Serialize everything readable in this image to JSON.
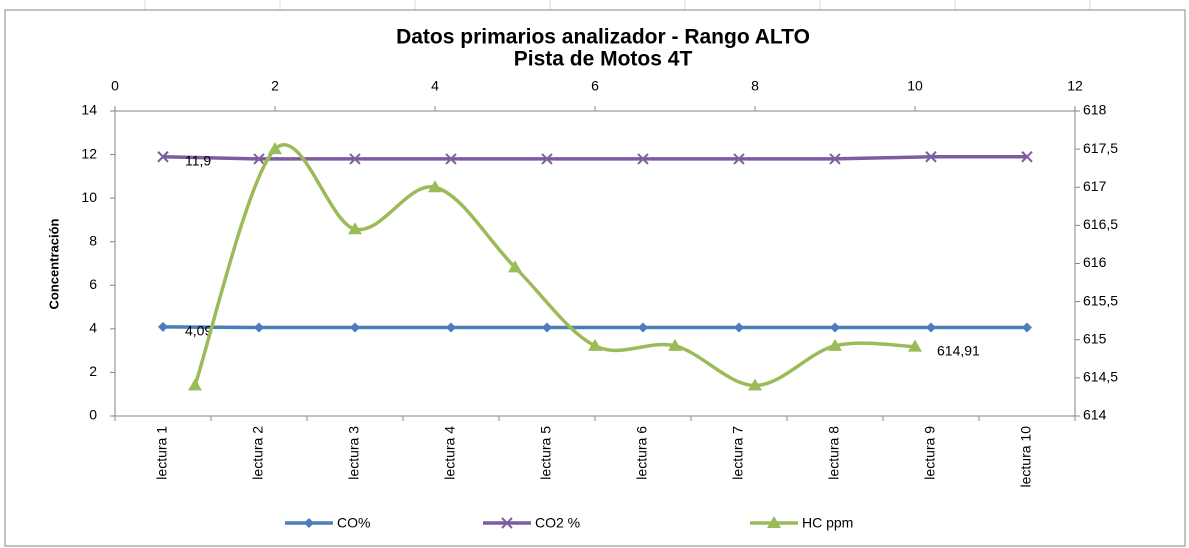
{
  "chart_data": {
    "type": "line",
    "title": "Datos primarios analizador - Rango ALTO",
    "subtitle": "Pista de Motos 4T",
    "y_label": "Concentración",
    "categories": [
      "lectura 1",
      "lectura 2",
      "lectura 3",
      "lectura 4",
      "lectura 5",
      "lectura 6",
      "lectura 7",
      "lectura 8",
      "lectura 9",
      "lectura 10"
    ],
    "ylim": [
      0,
      14
    ],
    "yticks": [
      0,
      2,
      4,
      6,
      8,
      10,
      12,
      14
    ],
    "y2lim": [
      614,
      618
    ],
    "y2ticks": [
      614,
      {
        "value": 614.5,
        "label": "614,5"
      },
      615,
      {
        "value": 615.5,
        "label": "615,5"
      },
      616,
      {
        "value": 616.5,
        "label": "616,5"
      },
      617,
      {
        "value": 617.5,
        "label": "617,5"
      },
      618
    ],
    "xlim": [
      0,
      12
    ],
    "xticks": [
      0,
      2,
      4,
      6,
      8,
      10,
      12
    ],
    "series": [
      {
        "name": "CO%",
        "color": "#4a7ebb",
        "marker": "diamond",
        "values": [
          4.09,
          4.06,
          4.06,
          4.06,
          4.06,
          4.06,
          4.06,
          4.06,
          4.06,
          4.06
        ],
        "value_labels": [
          "4,09",
          null,
          null,
          null,
          null,
          null,
          null,
          null,
          null,
          null
        ]
      },
      {
        "name": "CO2 %",
        "color": "#7e5ca0",
        "marker": "x",
        "values": [
          11.9,
          11.8,
          11.8,
          11.8,
          11.8,
          11.8,
          11.8,
          11.8,
          11.9,
          11.9
        ],
        "value_labels": [
          "11,9",
          null,
          null,
          null,
          null,
          null,
          null,
          null,
          null,
          null
        ]
      },
      {
        "name": "HC ppm",
        "color": "#9bbb59",
        "marker": "triangle",
        "axis": "y2",
        "smooth": true,
        "x": [
          1,
          2,
          3,
          4,
          5,
          6,
          7,
          8,
          9,
          10
        ],
        "values": [
          614.4,
          617.5,
          616.45,
          617.0,
          615.95,
          614.92,
          614.92,
          614.4,
          614.92,
          614.91
        ],
        "value_labels": [
          null,
          null,
          null,
          null,
          null,
          null,
          null,
          null,
          null,
          "614,91"
        ]
      }
    ]
  }
}
